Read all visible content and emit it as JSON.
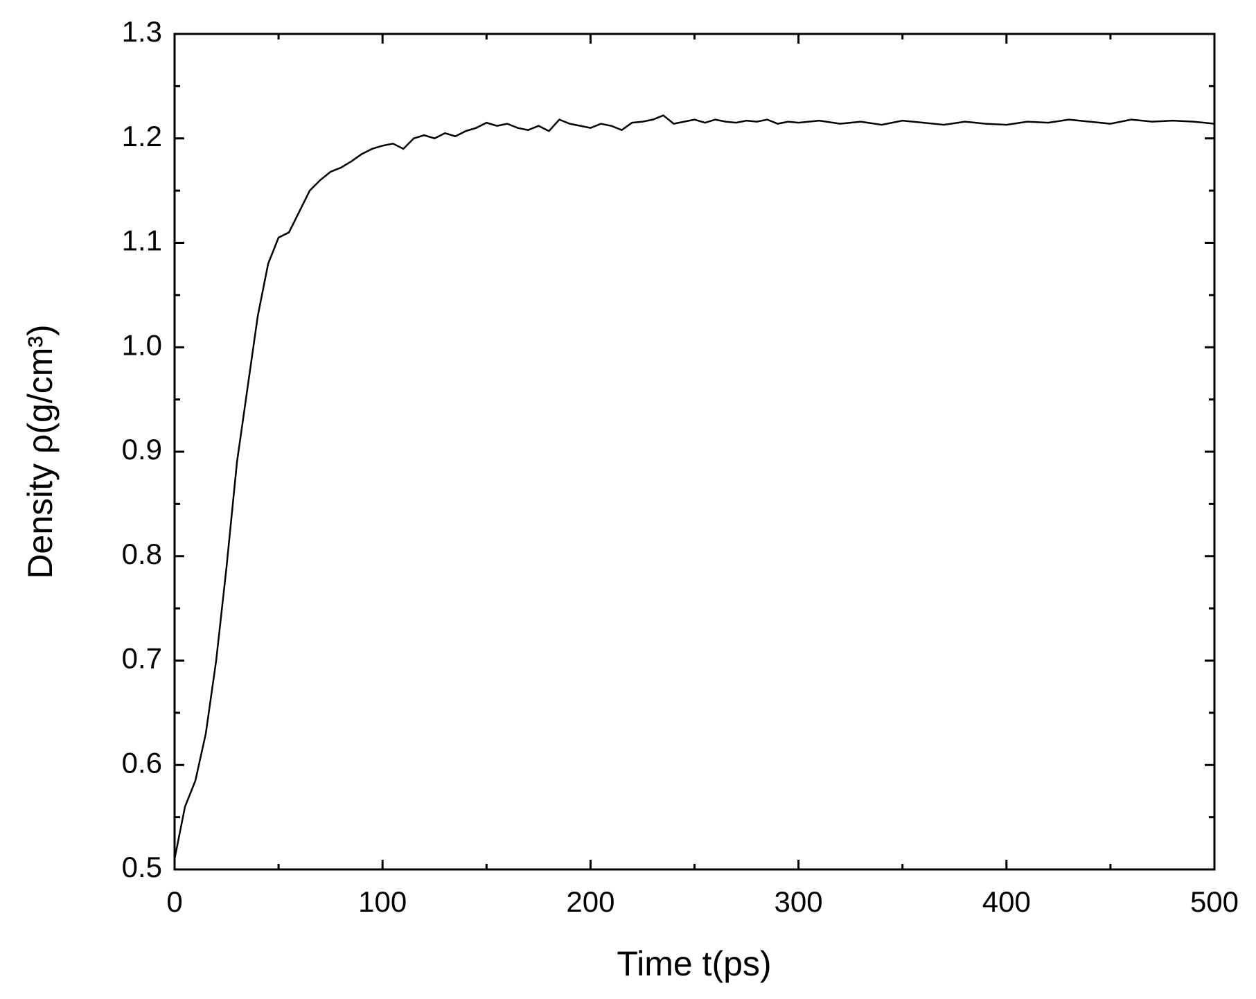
{
  "chart_data": {
    "type": "line",
    "xlabel": "Time t(ps)",
    "ylabel": "Density ρ(g/cm³)",
    "x": [
      0,
      5,
      10,
      15,
      20,
      25,
      30,
      35,
      40,
      45,
      50,
      55,
      60,
      65,
      70,
      75,
      80,
      85,
      90,
      95,
      100,
      105,
      110,
      115,
      120,
      125,
      130,
      135,
      140,
      145,
      150,
      155,
      160,
      165,
      170,
      175,
      180,
      185,
      190,
      195,
      200,
      205,
      210,
      215,
      220,
      225,
      230,
      235,
      240,
      245,
      250,
      255,
      260,
      265,
      270,
      275,
      280,
      285,
      290,
      295,
      300,
      310,
      320,
      330,
      340,
      350,
      360,
      370,
      380,
      390,
      400,
      410,
      420,
      430,
      440,
      450,
      460,
      470,
      480,
      490,
      500
    ],
    "series": [
      {
        "color": "#000000",
        "values": [
          0.51,
          0.56,
          0.585,
          0.63,
          0.7,
          0.79,
          0.89,
          0.96,
          1.03,
          1.08,
          1.105,
          1.11,
          1.13,
          1.15,
          1.16,
          1.168,
          1.172,
          1.178,
          1.185,
          1.19,
          1.193,
          1.195,
          1.19,
          1.2,
          1.203,
          1.2,
          1.205,
          1.202,
          1.207,
          1.21,
          1.215,
          1.212,
          1.214,
          1.21,
          1.208,
          1.212,
          1.207,
          1.218,
          1.214,
          1.212,
          1.21,
          1.214,
          1.212,
          1.208,
          1.215,
          1.216,
          1.218,
          1.222,
          1.214,
          1.216,
          1.218,
          1.215,
          1.218,
          1.216,
          1.215,
          1.217,
          1.216,
          1.218,
          1.214,
          1.216,
          1.215,
          1.217,
          1.214,
          1.216,
          1.213,
          1.217,
          1.215,
          1.213,
          1.216,
          1.214,
          1.213,
          1.216,
          1.215,
          1.218,
          1.216,
          1.214,
          1.218,
          1.216,
          1.217,
          1.216,
          1.214
        ]
      }
    ],
    "xlim": [
      0,
      500
    ],
    "xticks": [
      0,
      100,
      200,
      300,
      400,
      500
    ],
    "xminor_ticks": [
      50,
      150,
      250,
      350,
      450
    ],
    "ylim": [
      0.5,
      1.3
    ],
    "yticks": [
      0.5,
      0.6,
      0.7,
      0.8,
      0.9,
      {
        "value": 1,
        "label": "1.0"
      },
      1.1,
      1.2,
      1.3
    ],
    "yminor_ticks": [
      0.55,
      0.65,
      0.75,
      0.85,
      0.95,
      1.05,
      1.15,
      1.25
    ],
    "grid": false
  }
}
